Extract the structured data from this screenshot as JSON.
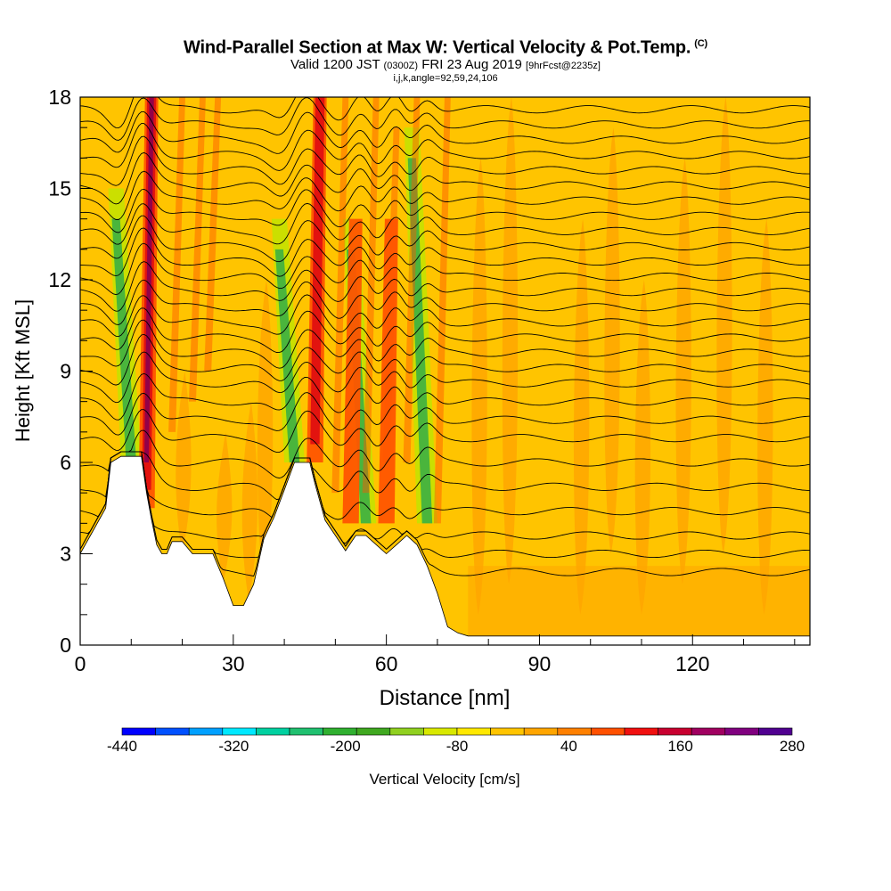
{
  "title": {
    "main": "Wind-Parallel Section at Max W: Vertical Velocity & Pot.Temp.",
    "copyright": "(C)",
    "valid_prefix": "Valid 1200 JST",
    "utc": "(0300Z)",
    "date": "FRI 23 Aug 2019",
    "forecast": "[9hrFcst@2235z]",
    "indices": "i,j,k,angle=92,59,24,106"
  },
  "colors": {
    "background_field": "#FFC400",
    "terrain": "#FFFFFF",
    "contour": "#000000",
    "orange": "#FFA500",
    "dark_orange": "#FF5500",
    "red": "#E01010",
    "green": "#3CB043",
    "yellow_green": "#C8E000"
  },
  "chart_data": {
    "type": "heatmap",
    "xlabel": "Distance [nm]",
    "ylabel": "Height [Kft MSL]",
    "xlim": [
      0,
      143
    ],
    "ylim": [
      0,
      18
    ],
    "x_ticks": [
      0,
      30,
      60,
      90,
      120
    ],
    "y_ticks": [
      0,
      3,
      6,
      9,
      12,
      15,
      18
    ],
    "colorbar": {
      "label": "Vertical Velocity [cm/s]",
      "tick_labels": [
        "-440",
        "-320",
        "-200",
        "-80",
        "40",
        "160",
        "280"
      ],
      "tick_values": [
        -440,
        -320,
        -200,
        -80,
        40,
        160,
        280
      ],
      "colors": [
        "#0000FF",
        "#0050FF",
        "#00A0FF",
        "#00E8FF",
        "#00D0A0",
        "#20C070",
        "#30B030",
        "#40A820",
        "#90D020",
        "#D8E800",
        "#FFE800",
        "#FFC400",
        "#FFA500",
        "#FF8000",
        "#FF5000",
        "#F01010",
        "#C80030",
        "#A00060",
        "#80007F",
        "#500090"
      ]
    },
    "terrain_profile": {
      "x": [
        0,
        1,
        2,
        3,
        4,
        5,
        6,
        8,
        10,
        12,
        13,
        14,
        15,
        16,
        17,
        18,
        20,
        22,
        24,
        26,
        28,
        30,
        32,
        34,
        36,
        38,
        40,
        42,
        44,
        45,
        46,
        48,
        50,
        52,
        54,
        56,
        58,
        60,
        62,
        64,
        66,
        68,
        70,
        72,
        74,
        76,
        78,
        80,
        100,
        120,
        143
      ],
      "y": [
        3,
        3.3,
        3.6,
        3.9,
        4.2,
        4.5,
        6,
        6.2,
        6.2,
        6.2,
        5,
        4.1,
        3.3,
        3,
        3,
        3.4,
        3.4,
        3,
        3,
        3,
        2.2,
        1.3,
        1.3,
        2,
        3.5,
        4.2,
        5.1,
        6,
        6,
        6,
        5.3,
        4.1,
        3.6,
        3.1,
        3.6,
        3.6,
        3.3,
        3,
        3.3,
        3.6,
        3.3,
        2.6,
        1.7,
        0.6,
        0.4,
        0.3,
        0.3,
        0.3,
        0.3,
        0.3,
        0.3
      ]
    },
    "updrafts": [
      {
        "x": 13,
        "bottom": 4.5,
        "top": 18,
        "max": 240
      },
      {
        "x": 46,
        "bottom": 6,
        "top": 18,
        "max": 200
      },
      {
        "x": 53,
        "bottom": 4,
        "top": 14,
        "max": 120
      },
      {
        "x": 60,
        "bottom": 4,
        "top": 14,
        "max": 100
      }
    ],
    "downdrafts": [
      {
        "x": 10,
        "bottom": 6,
        "top": 15,
        "min": -200
      },
      {
        "x": 42,
        "bottom": 6,
        "top": 14,
        "min": -180
      },
      {
        "x": 56,
        "bottom": 4,
        "top": 14,
        "min": -100
      },
      {
        "x": 68,
        "bottom": 4,
        "top": 17,
        "min": -80
      }
    ],
    "isentropes_kft": [
      2.4,
      3.0,
      3.6,
      4.4,
      5.2,
      6.0,
      6.8,
      7.4,
      8.0,
      8.6,
      9.1,
      9.6,
      10.1,
      10.6,
      11.1,
      11.6,
      12.1,
      12.6,
      13.1,
      13.6,
      14.1,
      14.6,
      15.1,
      15.6,
      16.1,
      16.6,
      17.1,
      17.6
    ]
  }
}
